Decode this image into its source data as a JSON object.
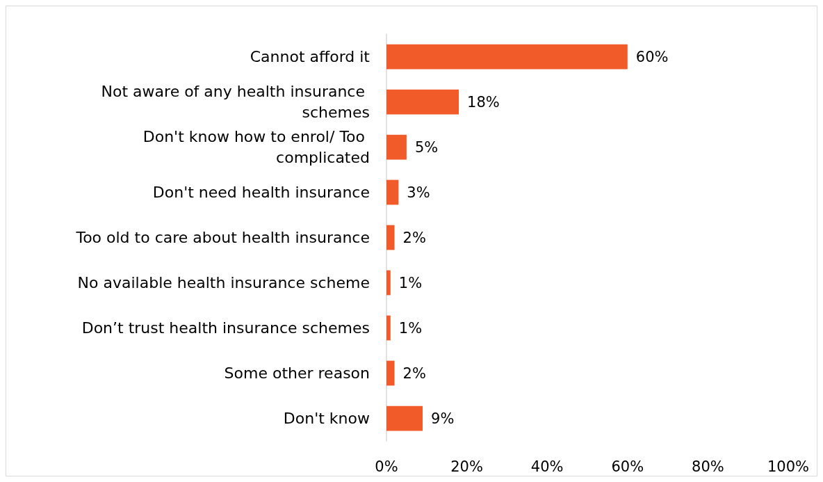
{
  "chart_data": {
    "type": "bar",
    "orientation": "horizontal",
    "categories": [
      "Cannot afford it",
      "Not aware of any health insurance schemes",
      "Don't know how to enrol/ Too complicated",
      "Don't need health insurance",
      "Too old to care about health insurance",
      "No available health insurance scheme",
      "Don’t trust health insurance schemes",
      "Some other reason",
      "Don't know"
    ],
    "values": [
      60,
      18,
      5,
      3,
      2,
      1,
      1,
      2,
      9
    ],
    "value_labels": [
      "60%",
      "18%",
      "5%",
      "3%",
      "2%",
      "1%",
      "1%",
      "2%",
      "9%"
    ],
    "color": "#f15a29",
    "xlim": [
      0,
      100
    ],
    "xticks": [
      {
        "value": 0,
        "label": "0%"
      },
      {
        "value": 20,
        "label": "20%"
      },
      {
        "value": 40,
        "label": "40%"
      },
      {
        "value": 60,
        "label": "60%"
      },
      {
        "value": 80,
        "label": "80%"
      },
      {
        "value": 100,
        "label": "100%"
      }
    ],
    "grid": false
  }
}
